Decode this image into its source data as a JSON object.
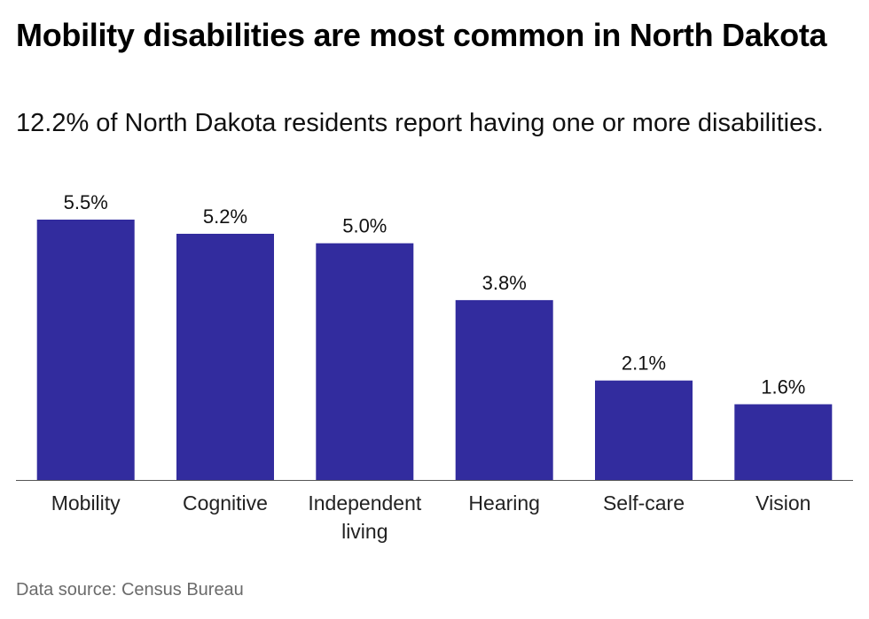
{
  "title": "Mobility disabilities are most common in North Dakota",
  "subtitle": "12.2% of North Dakota residents report having one or more disabilities.",
  "source": "Data source: Census Bureau",
  "colors": {
    "bar": "#322c9e",
    "baseline": "#555555"
  },
  "chart_data": {
    "type": "bar",
    "title": "Mobility disabilities are most common in North Dakota",
    "subtitle": "12.2% of North Dakota residents report having one or more disabilities.",
    "categories": [
      [
        "Mobility"
      ],
      [
        "Cognitive"
      ],
      [
        "Independent",
        "living"
      ],
      [
        "Hearing"
      ],
      [
        "Self-care"
      ],
      [
        "Vision"
      ]
    ],
    "values": [
      5.5,
      5.2,
      5.0,
      3.8,
      2.1,
      1.6
    ],
    "value_labels": [
      "5.5%",
      "5.2%",
      "5.0%",
      "3.8%",
      "2.1%",
      "1.6%"
    ],
    "unit": "%",
    "ylim": [
      0,
      5.5
    ],
    "grid": false,
    "xlabel": "",
    "ylabel": ""
  }
}
